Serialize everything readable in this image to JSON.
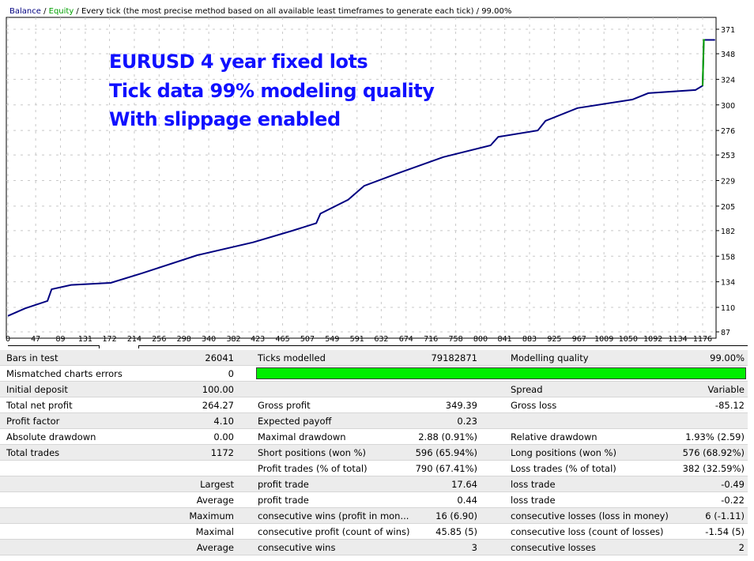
{
  "header": {
    "balance": "Balance",
    "sep1": " / ",
    "equity": "Equity",
    "rest": " / Every tick (the most precise method based on all available least timeframes to generate each tick) / 99.00%"
  },
  "annotation": [
    "EURUSD 4 year fixed lots",
    "Tick data 99% modeling quality",
    "With slippage enabled"
  ],
  "chart_data": {
    "type": "line",
    "xlim": [
      0,
      1197
    ],
    "ylim": [
      87,
      380
    ],
    "x_ticks": [
      0,
      47,
      89,
      131,
      172,
      214,
      256,
      298,
      340,
      382,
      423,
      465,
      507,
      549,
      591,
      632,
      674,
      716,
      758,
      800,
      841,
      883,
      925,
      967,
      1009,
      1050,
      1092,
      1134,
      1176
    ],
    "y_ticks": [
      87,
      110,
      134,
      158,
      182,
      205,
      229,
      253,
      276,
      300,
      324,
      348,
      371
    ],
    "series": [
      {
        "name": "Balance",
        "color": "#000080",
        "points": [
          [
            0,
            102
          ],
          [
            29,
            109
          ],
          [
            67,
            116
          ],
          [
            74,
            127
          ],
          [
            107,
            131
          ],
          [
            174,
            133
          ],
          [
            227,
            142
          ],
          [
            321,
            159
          ],
          [
            415,
            171
          ],
          [
            482,
            182
          ],
          [
            522,
            189
          ],
          [
            529,
            198
          ],
          [
            576,
            211
          ],
          [
            603,
            224
          ],
          [
            656,
            235
          ],
          [
            737,
            251
          ],
          [
            817,
            262
          ],
          [
            830,
            270
          ],
          [
            897,
            276
          ],
          [
            910,
            285
          ],
          [
            964,
            297
          ],
          [
            1057,
            305
          ],
          [
            1084,
            311
          ],
          [
            1164,
            314
          ],
          [
            1176,
            318
          ],
          [
            1178,
            361
          ],
          [
            1197,
            361
          ]
        ]
      },
      {
        "name": "Equity",
        "color": "#00a000",
        "points": [
          [
            1176,
            318
          ],
          [
            1178,
            361
          ],
          [
            1180,
            361
          ]
        ]
      }
    ]
  },
  "stats": [
    [
      "Bars in test",
      "26041",
      "Ticks modelled",
      "79182871",
      "Modelling quality",
      "99.00%"
    ],
    [
      "Mismatched charts errors",
      "0",
      "",
      "",
      "",
      ""
    ],
    [
      "Initial deposit",
      "100.00",
      "",
      "",
      "Spread",
      "Variable"
    ],
    [
      "Total net profit",
      "264.27",
      "Gross profit",
      "349.39",
      "Gross loss",
      "-85.12"
    ],
    [
      "Profit factor",
      "4.10",
      "Expected payoff",
      "0.23",
      "",
      ""
    ],
    [
      "Absolute drawdown",
      "0.00",
      "Maximal drawdown",
      "2.88 (0.91%)",
      "Relative drawdown",
      "1.93% (2.59)"
    ],
    [
      "Total trades",
      "1172",
      "Short positions (won %)",
      "596 (65.94%)",
      "Long positions (won %)",
      "576 (68.92%)"
    ],
    [
      "",
      "",
      "Profit trades (% of total)",
      "790 (67.41%)",
      "Loss trades (% of total)",
      "382 (32.59%)"
    ],
    [
      "",
      "Largest",
      "profit trade",
      "17.64",
      "loss trade",
      "-0.49"
    ],
    [
      "",
      "Average",
      "profit trade",
      "0.44",
      "loss trade",
      "-0.22"
    ],
    [
      "",
      "Maximum",
      "consecutive wins (profit in mon...",
      "16 (6.90)",
      "consecutive losses (loss in money)",
      "6 (-1.11)"
    ],
    [
      "",
      "Maximal",
      "consecutive profit (count of wins)",
      "45.85 (5)",
      "consecutive loss (count of losses)",
      "-1.54 (5)"
    ],
    [
      "",
      "Average",
      "consecutive wins",
      "3",
      "consecutive losses",
      "2"
    ]
  ],
  "modelling_quality_fill": 0.99,
  "colors": {
    "bar": "#00ee00",
    "annotation": "#1010ff",
    "balance": "#000080",
    "equity": "#00a000"
  }
}
